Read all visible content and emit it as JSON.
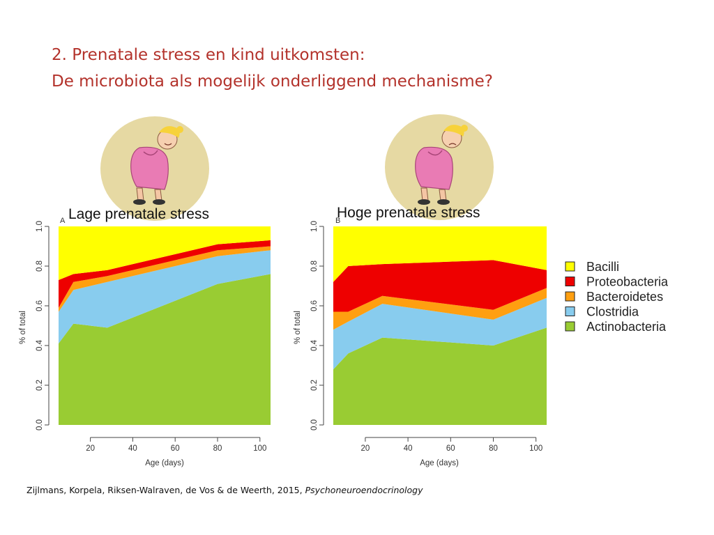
{
  "slide": {
    "title_line1": "2. Prenatale stress en kind uitkomsten:",
    "title_line2": "De microbiota als mogelijk onderliggend mechanisme?",
    "citation_authors": "Zijlmans, Korpela, Riksen-Walraven, de Vos & de Weerth, 2015, ",
    "citation_journal": "Psychoneuroendocrinology"
  },
  "colors": {
    "Bacilli": "#ffff00",
    "Proteobacteria": "#ee0000",
    "Bacteroidetes": "#ff9f10",
    "Clostridia": "#88ccee",
    "Actinobacteria": "#99cc33"
  },
  "icons": [
    "pregnant-woman-calm-icon",
    "pregnant-woman-stressed-icon"
  ],
  "chart_data": [
    {
      "type": "area",
      "panel_letter": "A",
      "title": "Lage prenatale stress",
      "xlabel": "Age (days)",
      "ylabel": "% of total",
      "xlim": [
        5,
        105
      ],
      "ylim": [
        0,
        1
      ],
      "xticks": [
        20,
        40,
        60,
        80,
        100
      ],
      "yticks": [
        "0.0",
        "0.2",
        "0.4",
        "0.6",
        "0.8",
        "1.0"
      ],
      "x": [
        5,
        12,
        28,
        80,
        105
      ],
      "series": [
        {
          "name": "Actinobacteria",
          "values": [
            0.41,
            0.51,
            0.49,
            0.71,
            0.76
          ]
        },
        {
          "name": "Clostridia",
          "values": [
            0.16,
            0.17,
            0.23,
            0.14,
            0.12
          ]
        },
        {
          "name": "Bacteroidetes",
          "values": [
            0.02,
            0.04,
            0.03,
            0.03,
            0.02
          ]
        },
        {
          "name": "Proteobacteria",
          "values": [
            0.14,
            0.04,
            0.03,
            0.03,
            0.03
          ]
        },
        {
          "name": "Bacilli",
          "values": [
            0.27,
            0.24,
            0.22,
            0.09,
            0.07
          ]
        }
      ]
    },
    {
      "type": "area",
      "panel_letter": "B",
      "title": "Hoge prenatale stress",
      "xlabel": "Age (days)",
      "ylabel": "% of total",
      "xlim": [
        5,
        105
      ],
      "ylim": [
        0,
        1
      ],
      "xticks": [
        20,
        40,
        60,
        80,
        100
      ],
      "yticks": [
        "0.0",
        "0.2",
        "0.4",
        "0.6",
        "0.8",
        "1.0"
      ],
      "x": [
        5,
        12,
        28,
        80,
        105
      ],
      "series": [
        {
          "name": "Actinobacteria",
          "values": [
            0.28,
            0.36,
            0.44,
            0.4,
            0.49
          ]
        },
        {
          "name": "Clostridia",
          "values": [
            0.2,
            0.16,
            0.17,
            0.13,
            0.15
          ]
        },
        {
          "name": "Bacteroidetes",
          "values": [
            0.09,
            0.05,
            0.04,
            0.05,
            0.05
          ]
        },
        {
          "name": "Proteobacteria",
          "values": [
            0.15,
            0.23,
            0.16,
            0.25,
            0.09
          ]
        },
        {
          "name": "Bacilli",
          "values": [
            0.28,
            0.2,
            0.19,
            0.17,
            0.22
          ]
        }
      ]
    }
  ],
  "legend": {
    "placement": "right",
    "items": [
      "Bacilli",
      "Proteobacteria",
      "Bacteroidetes",
      "Clostridia",
      "Actinobacteria"
    ]
  }
}
